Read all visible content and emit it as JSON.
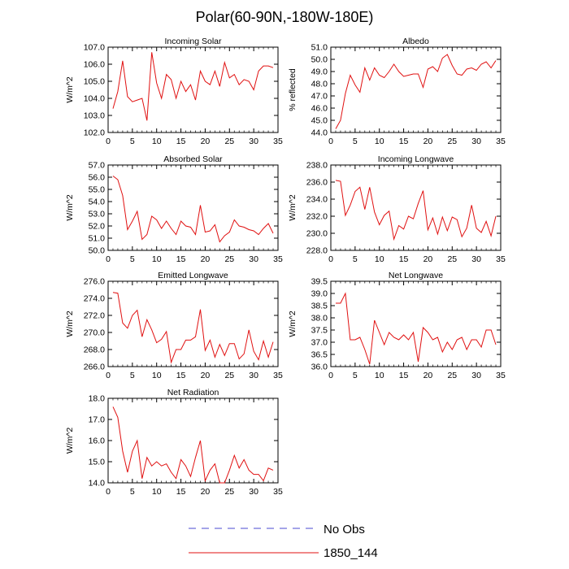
{
  "title": "Polar(60-90N,-180W-180E)",
  "legend": {
    "entries": [
      {
        "label": "No Obs",
        "color": "#4a4ad0",
        "dash": true
      },
      {
        "label": "1850_144",
        "color": "#e01010",
        "dash": false
      }
    ]
  },
  "chart_data": [
    {
      "type": "line",
      "title": "Incoming Solar",
      "ylabel": "W/m^2",
      "xlim": [
        0,
        35
      ],
      "xticks": [
        0,
        5,
        10,
        15,
        20,
        25,
        30,
        35
      ],
      "ylim": [
        102.0,
        107.0
      ],
      "yticks": [
        "102.0",
        "103.0",
        "104.0",
        "105.0",
        "106.0",
        "107.0"
      ],
      "x": [
        1,
        2,
        3,
        4,
        5,
        6,
        7,
        8,
        9,
        10,
        11,
        12,
        13,
        14,
        15,
        16,
        17,
        18,
        19,
        20,
        21,
        22,
        23,
        24,
        25,
        26,
        27,
        28,
        29,
        30,
        31,
        32,
        33,
        34
      ],
      "values": [
        103.4,
        104.4,
        106.2,
        104.1,
        103.8,
        103.9,
        104.0,
        102.7,
        106.7,
        104.9,
        104.0,
        105.4,
        105.1,
        104.0,
        105.0,
        104.4,
        104.8,
        103.9,
        105.6,
        105.0,
        104.8,
        105.6,
        104.7,
        106.1,
        105.2,
        105.4,
        104.8,
        105.1,
        105.0,
        104.5,
        105.6,
        105.9,
        105.9,
        105.8
      ],
      "series_name": "1850_144",
      "color": "#e01010"
    },
    {
      "type": "line",
      "title": "Albedo",
      "ylabel": "% reflected",
      "xlim": [
        0,
        35
      ],
      "xticks": [
        0,
        5,
        10,
        15,
        20,
        25,
        30,
        35
      ],
      "ylim": [
        44.0,
        51.0
      ],
      "yticks": [
        "44.0",
        "45.0",
        "46.0",
        "47.0",
        "48.0",
        "49.0",
        "50.0",
        "51.0"
      ],
      "x": [
        1,
        2,
        3,
        4,
        5,
        6,
        7,
        8,
        9,
        10,
        11,
        12,
        13,
        14,
        15,
        16,
        17,
        18,
        19,
        20,
        21,
        22,
        23,
        24,
        25,
        26,
        27,
        28,
        29,
        30,
        31,
        32,
        33,
        34
      ],
      "values": [
        44.3,
        45.0,
        47.2,
        48.7,
        47.9,
        47.3,
        49.3,
        48.3,
        49.3,
        48.7,
        48.5,
        49.0,
        49.6,
        49.0,
        48.6,
        48.7,
        48.8,
        48.8,
        47.7,
        49.2,
        49.4,
        49.0,
        50.1,
        50.4,
        49.5,
        48.8,
        48.7,
        49.2,
        49.3,
        49.1,
        49.6,
        49.8,
        49.3,
        49.9
      ],
      "series_name": "1850_144",
      "color": "#e01010"
    },
    {
      "type": "line",
      "title": "Absorbed Solar",
      "ylabel": "W/m^2",
      "xlim": [
        0,
        35
      ],
      "xticks": [
        0,
        5,
        10,
        15,
        20,
        25,
        30,
        35
      ],
      "ylim": [
        50.0,
        57.0
      ],
      "yticks": [
        "50.0",
        "51.0",
        "52.0",
        "53.0",
        "54.0",
        "55.0",
        "56.0",
        "57.0"
      ],
      "x": [
        1,
        2,
        3,
        4,
        5,
        6,
        7,
        8,
        9,
        10,
        11,
        12,
        13,
        14,
        15,
        16,
        17,
        18,
        19,
        20,
        21,
        22,
        23,
        24,
        25,
        26,
        27,
        28,
        29,
        30,
        31,
        32,
        33,
        34
      ],
      "values": [
        56.1,
        55.8,
        54.5,
        51.7,
        52.4,
        53.2,
        50.9,
        51.3,
        52.8,
        52.5,
        51.8,
        52.4,
        51.8,
        51.3,
        52.4,
        52.0,
        51.9,
        51.3,
        53.7,
        51.5,
        51.6,
        52.1,
        50.7,
        51.2,
        51.5,
        52.5,
        52.0,
        51.9,
        51.7,
        51.6,
        51.3,
        51.8,
        52.2,
        51.4
      ],
      "series_name": "1850_144",
      "color": "#e01010"
    },
    {
      "type": "line",
      "title": "Incoming Longwave",
      "ylabel": "W/m^2",
      "xlim": [
        0,
        35
      ],
      "xticks": [
        0,
        5,
        10,
        15,
        20,
        25,
        30,
        35
      ],
      "ylim": [
        228.0,
        238.0
      ],
      "yticks": [
        "228.0",
        "230.0",
        "232.0",
        "234.0",
        "236.0",
        "238.0"
      ],
      "x": [
        1,
        2,
        3,
        4,
        5,
        6,
        7,
        8,
        9,
        10,
        11,
        12,
        13,
        14,
        15,
        16,
        17,
        18,
        19,
        20,
        21,
        22,
        23,
        24,
        25,
        26,
        27,
        28,
        29,
        30,
        31,
        32,
        33,
        34
      ],
      "values": [
        236.2,
        236.1,
        232.1,
        233.3,
        234.9,
        235.4,
        232.8,
        235.4,
        232.5,
        231.0,
        232.1,
        232.6,
        229.3,
        230.9,
        230.5,
        232.0,
        231.7,
        233.5,
        235.0,
        230.4,
        231.8,
        229.9,
        231.9,
        230.3,
        231.9,
        231.6,
        229.6,
        230.6,
        233.3,
        230.6,
        230.1,
        231.4,
        229.7,
        232.0
      ],
      "series_name": "1850_144",
      "color": "#e01010"
    },
    {
      "type": "line",
      "title": "Emitted Longwave",
      "ylabel": "W/m^2",
      "xlim": [
        0,
        35
      ],
      "xticks": [
        0,
        5,
        10,
        15,
        20,
        25,
        30,
        35
      ],
      "ylim": [
        266.0,
        276.0
      ],
      "yticks": [
        "266.0",
        "268.0",
        "270.0",
        "272.0",
        "274.0",
        "276.0"
      ],
      "x": [
        1,
        2,
        3,
        4,
        5,
        6,
        7,
        8,
        9,
        10,
        11,
        12,
        13,
        14,
        15,
        16,
        17,
        18,
        19,
        20,
        21,
        22,
        23,
        24,
        25,
        26,
        27,
        28,
        29,
        30,
        31,
        32,
        33,
        34
      ],
      "values": [
        274.7,
        274.6,
        271.1,
        270.5,
        272.0,
        272.6,
        269.5,
        271.5,
        270.3,
        268.8,
        269.2,
        270.1,
        266.5,
        268.0,
        268.0,
        269.1,
        269.1,
        269.5,
        272.7,
        267.9,
        269.1,
        267.1,
        268.6,
        267.3,
        268.7,
        268.7,
        266.9,
        267.5,
        270.3,
        267.8,
        266.8,
        269.0,
        267.1,
        268.9
      ],
      "series_name": "1850_144",
      "color": "#e01010"
    },
    {
      "type": "line",
      "title": "Net Longwave",
      "ylabel": "W/m^2",
      "xlim": [
        0,
        35
      ],
      "xticks": [
        0,
        5,
        10,
        15,
        20,
        25,
        30,
        35
      ],
      "ylim": [
        36.0,
        39.5
      ],
      "yticks": [
        "36.0",
        "36.5",
        "37.0",
        "37.5",
        "38.0",
        "38.5",
        "39.0",
        "39.5"
      ],
      "x": [
        1,
        2,
        3,
        4,
        5,
        6,
        7,
        8,
        9,
        10,
        11,
        12,
        13,
        14,
        15,
        16,
        17,
        18,
        19,
        20,
        21,
        22,
        23,
        24,
        25,
        26,
        27,
        28,
        29,
        30,
        31,
        32,
        33,
        34
      ],
      "values": [
        38.6,
        38.6,
        39.0,
        37.1,
        37.1,
        37.2,
        36.7,
        36.1,
        37.9,
        37.4,
        36.9,
        37.4,
        37.2,
        37.1,
        37.3,
        37.1,
        37.4,
        36.2,
        37.6,
        37.4,
        37.1,
        37.2,
        36.6,
        37.0,
        36.7,
        37.1,
        37.2,
        36.7,
        37.1,
        37.1,
        36.8,
        37.5,
        37.5,
        36.9
      ],
      "series_name": "1850_144",
      "color": "#e01010"
    },
    {
      "type": "line",
      "title": "Net Radiation",
      "ylabel": "W/m^2",
      "xlim": [
        0,
        35
      ],
      "xticks": [
        0,
        5,
        10,
        15,
        20,
        25,
        30,
        35
      ],
      "ylim": [
        14.0,
        18.0
      ],
      "yticks": [
        "14.0",
        "15.0",
        "16.0",
        "17.0",
        "18.0"
      ],
      "x": [
        1,
        2,
        3,
        4,
        5,
        6,
        7,
        8,
        9,
        10,
        11,
        12,
        13,
        14,
        15,
        16,
        17,
        18,
        19,
        20,
        21,
        22,
        23,
        24,
        25,
        26,
        27,
        28,
        29,
        30,
        31,
        32,
        33,
        34
      ],
      "values": [
        17.6,
        17.1,
        15.5,
        14.5,
        15.5,
        16.0,
        14.2,
        15.2,
        14.8,
        15.0,
        14.8,
        14.9,
        14.5,
        14.2,
        15.1,
        14.8,
        14.3,
        15.2,
        16.0,
        14.1,
        14.6,
        14.9,
        14.0,
        14.0,
        14.6,
        15.3,
        14.7,
        15.1,
        14.6,
        14.4,
        14.4,
        14.1,
        14.7,
        14.6
      ],
      "series_name": "1850_144",
      "color": "#e01010"
    }
  ]
}
